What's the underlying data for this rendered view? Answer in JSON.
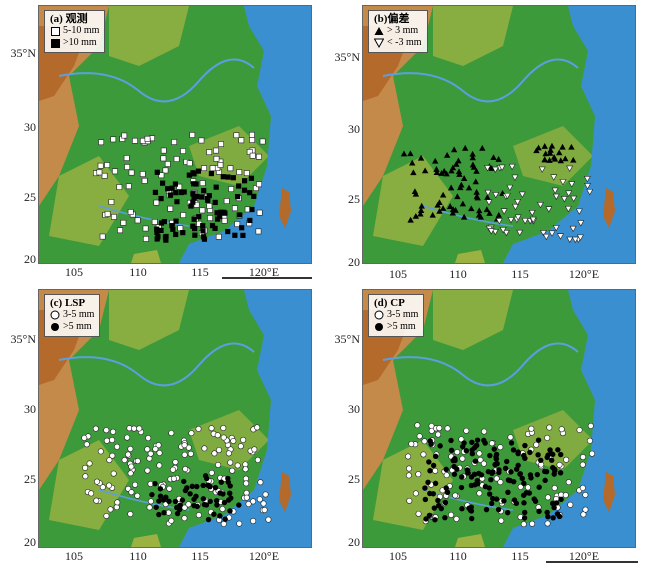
{
  "panels": [
    {
      "id": "a",
      "label": "(a)",
      "title": "观测",
      "legend": [
        {
          "symbol": "open-square",
          "text": "5-10 mm"
        },
        {
          "symbol": "filled-square",
          "text": ">10 mm"
        }
      ]
    },
    {
      "id": "b",
      "label": "(b)",
      "title": "偏差",
      "legend": [
        {
          "symbol": "filled-triangle",
          "text": "> 3 mm"
        },
        {
          "symbol": "open-triangle-down",
          "text": "< -3 mm"
        }
      ]
    },
    {
      "id": "c",
      "label": "(c)",
      "title": "LSP",
      "legend": [
        {
          "symbol": "open-circle",
          "text": "3-5 mm"
        },
        {
          "symbol": "filled-circle",
          "text": ">5 mm"
        }
      ]
    },
    {
      "id": "d",
      "label": "(d)",
      "title": "CP",
      "legend": [
        {
          "symbol": "open-circle",
          "text": "3-5 mm"
        },
        {
          "symbol": "filled-circle",
          "text": ">5 mm"
        }
      ]
    }
  ],
  "axes": {
    "lat_labels": [
      "35°N",
      "30",
      "25",
      "20"
    ],
    "lon_labels": [
      "105",
      "110",
      "115",
      "120°E"
    ],
    "lat_values": [
      35,
      30,
      25,
      20
    ],
    "lon_values": [
      105,
      110,
      115,
      120
    ]
  },
  "colors": {
    "sea": "#3a8fd0",
    "lowland": "#3d9a3a",
    "hills": "#9bb243",
    "mountains": "#b36a2a",
    "plateau": "#c48a4a"
  }
}
